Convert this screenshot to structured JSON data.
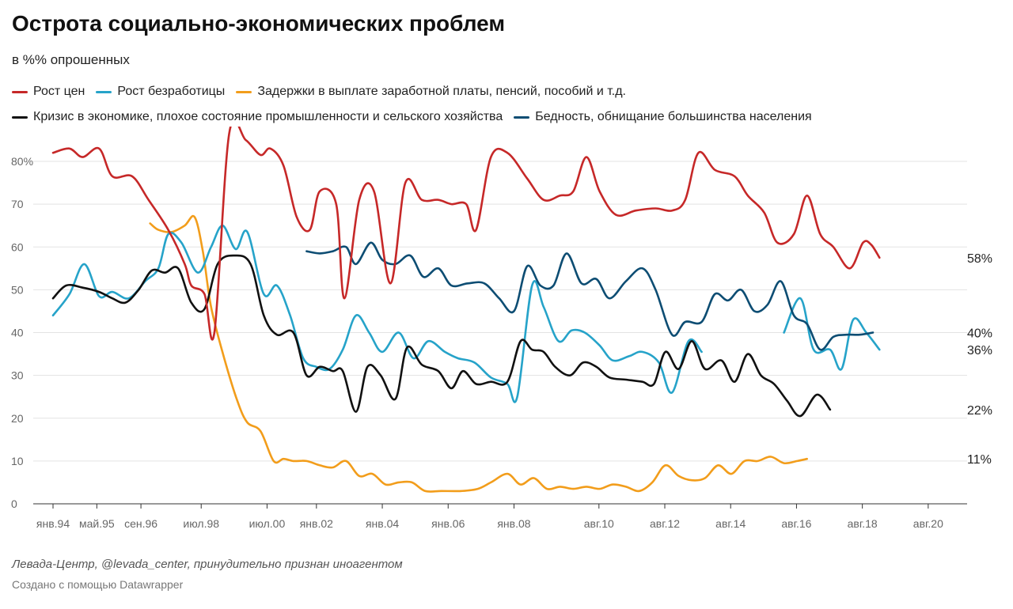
{
  "header": {
    "title": "Острота социально-экономических проблем",
    "subtitle": "в %% опрошенных"
  },
  "footer": {
    "source": "Левада-Центр, @levada_center, принудительно признан иноагентом",
    "credit": "Создано с помощью Datawrapper"
  },
  "chart_data": {
    "type": "line",
    "title": "Острота социально-экономических проблем",
    "subtitle": "в %% опрошенных",
    "xlabel": "",
    "ylabel": "",
    "xlim": [
      1994.0,
      2020.92
    ],
    "ylim": [
      0,
      80
    ],
    "grid": true,
    "legend_position": "top-left",
    "y_ticks": [
      {
        "value": 0,
        "label": "0"
      },
      {
        "value": 10,
        "label": "10"
      },
      {
        "value": 20,
        "label": "20"
      },
      {
        "value": 30,
        "label": "30"
      },
      {
        "value": 40,
        "label": "40"
      },
      {
        "value": 50,
        "label": "50"
      },
      {
        "value": 60,
        "label": "60"
      },
      {
        "value": 70,
        "label": "70"
      },
      {
        "value": 80,
        "label": "80%"
      }
    ],
    "x_ticks": [
      {
        "value": 1994.0,
        "label": "янв.94"
      },
      {
        "value": 1995.33,
        "label": "май.95"
      },
      {
        "value": 1996.67,
        "label": "сен.96"
      },
      {
        "value": 1998.5,
        "label": "июл.98"
      },
      {
        "value": 2000.5,
        "label": "июл.00"
      },
      {
        "value": 2002.0,
        "label": "янв.02"
      },
      {
        "value": 2004.0,
        "label": "янв.04"
      },
      {
        "value": 2006.0,
        "label": "янв.06"
      },
      {
        "value": 2008.0,
        "label": "янв.08"
      },
      {
        "value": 2010.58,
        "label": "авг.10"
      },
      {
        "value": 2012.58,
        "label": "авг.12"
      },
      {
        "value": 2014.58,
        "label": "авг.14"
      },
      {
        "value": 2016.58,
        "label": "авг.16"
      },
      {
        "value": 2018.58,
        "label": "авг.18"
      },
      {
        "value": 2020.58,
        "label": "авг.20"
      }
    ],
    "series": [
      {
        "name": "Рост цен",
        "color": "#c62828",
        "end_label": "58%",
        "points": [
          [
            1994.0,
            82
          ],
          [
            1994.5,
            83
          ],
          [
            1994.9,
            81
          ],
          [
            1995.4,
            83
          ],
          [
            1995.8,
            76.5
          ],
          [
            1996.4,
            76.5
          ],
          [
            1996.9,
            71
          ],
          [
            1997.5,
            64
          ],
          [
            1998.0,
            56
          ],
          [
            1998.2,
            51
          ],
          [
            1998.6,
            49
          ],
          [
            1998.9,
            40
          ],
          [
            1999.35,
            86.5
          ],
          [
            1999.85,
            85
          ],
          [
            2000.3,
            81.5
          ],
          [
            2000.6,
            83
          ],
          [
            2001.0,
            79
          ],
          [
            2001.4,
            67
          ],
          [
            2001.8,
            64
          ],
          [
            2002.1,
            73
          ],
          [
            2002.6,
            70
          ],
          [
            2002.85,
            48
          ],
          [
            2003.3,
            71
          ],
          [
            2003.75,
            73
          ],
          [
            2004.25,
            51.5
          ],
          [
            2004.7,
            75
          ],
          [
            2005.2,
            71
          ],
          [
            2005.7,
            71
          ],
          [
            2006.1,
            70
          ],
          [
            2006.55,
            70
          ],
          [
            2006.85,
            64
          ],
          [
            2007.3,
            81
          ],
          [
            2007.8,
            82
          ],
          [
            2008.4,
            76
          ],
          [
            2008.9,
            71
          ],
          [
            2009.4,
            72
          ],
          [
            2009.8,
            73
          ],
          [
            2010.2,
            81
          ],
          [
            2010.6,
            73
          ],
          [
            2011.1,
            67.5
          ],
          [
            2011.7,
            68.5
          ],
          [
            2012.3,
            69
          ],
          [
            2012.8,
            68.5
          ],
          [
            2013.2,
            71
          ],
          [
            2013.6,
            82
          ],
          [
            2014.1,
            78
          ],
          [
            2014.7,
            76.5
          ],
          [
            2015.1,
            72
          ],
          [
            2015.6,
            68
          ],
          [
            2016.0,
            61
          ],
          [
            2016.5,
            63
          ],
          [
            2016.9,
            72
          ],
          [
            2017.3,
            63
          ],
          [
            2017.7,
            60
          ],
          [
            2018.2,
            55
          ],
          [
            2018.6,
            61
          ],
          [
            2018.85,
            60.5
          ],
          [
            2019.1,
            57.5
          ]
        ]
      },
      {
        "name": "Рост безработицы",
        "color": "#26a3c9",
        "end_label": "36%",
        "points": [
          [
            1994.0,
            44
          ],
          [
            1994.5,
            49
          ],
          [
            1994.95,
            56
          ],
          [
            1995.4,
            48.5
          ],
          [
            1995.8,
            49.5
          ],
          [
            1996.3,
            48
          ],
          [
            1996.8,
            52
          ],
          [
            1997.2,
            55
          ],
          [
            1997.5,
            63
          ],
          [
            1997.9,
            61
          ],
          [
            1998.4,
            54
          ],
          [
            1998.8,
            60
          ],
          [
            1999.15,
            65
          ],
          [
            1999.55,
            59.5
          ],
          [
            1999.9,
            63.5
          ],
          [
            2000.4,
            49
          ],
          [
            2000.8,
            51
          ],
          [
            2001.2,
            44
          ],
          [
            2001.6,
            34
          ],
          [
            2002.0,
            32
          ],
          [
            2002.4,
            31.5
          ],
          [
            2002.8,
            36
          ],
          [
            2003.2,
            44
          ],
          [
            2003.6,
            40
          ],
          [
            2004.0,
            35.5
          ],
          [
            2004.5,
            40
          ],
          [
            2004.95,
            34
          ],
          [
            2005.4,
            38
          ],
          [
            2005.9,
            35.5
          ],
          [
            2006.3,
            34
          ],
          [
            2006.8,
            33
          ],
          [
            2007.3,
            29.5
          ],
          [
            2007.8,
            28
          ],
          [
            2008.1,
            25
          ],
          [
            2008.55,
            51
          ],
          [
            2008.9,
            46
          ],
          [
            2009.35,
            38
          ],
          [
            2009.75,
            40.5
          ],
          [
            2010.15,
            40
          ],
          [
            2010.6,
            37
          ],
          [
            2011.0,
            33.5
          ],
          [
            2011.5,
            34.5
          ],
          [
            2011.9,
            35.5
          ],
          [
            2012.4,
            33
          ],
          [
            2012.8,
            26
          ],
          [
            2013.3,
            38
          ],
          [
            2013.7,
            35.5
          ]
        ],
        "segments": [
          [
            [
              2016.2,
              40
            ],
            [
              2016.7,
              48
            ],
            [
              2017.1,
              36
            ],
            [
              2017.6,
              36
            ],
            [
              2017.95,
              31.5
            ],
            [
              2018.3,
              43
            ],
            [
              2018.7,
              40
            ],
            [
              2019.1,
              36
            ]
          ]
        ]
      },
      {
        "name": "Задержки в выплате заработной платы, пенсий, пособий и т.д.",
        "color": "#f29d1b",
        "end_label": "11%",
        "points": [
          [
            1996.95,
            65.5
          ],
          [
            1997.2,
            64
          ],
          [
            1997.6,
            63.5
          ],
          [
            1998.0,
            65
          ],
          [
            1998.3,
            67
          ],
          [
            1998.55,
            59
          ],
          [
            1998.8,
            46
          ],
          [
            1999.2,
            34
          ],
          [
            1999.6,
            24
          ],
          [
            1999.9,
            19
          ],
          [
            2000.3,
            17
          ],
          [
            2000.7,
            10
          ],
          [
            2001.0,
            10.5
          ],
          [
            2001.3,
            10
          ],
          [
            2001.7,
            10
          ],
          [
            2002.1,
            9
          ],
          [
            2002.5,
            8.5
          ],
          [
            2002.9,
            10
          ],
          [
            2003.3,
            6.5
          ],
          [
            2003.7,
            7
          ],
          [
            2004.1,
            4.5
          ],
          [
            2004.5,
            5
          ],
          [
            2004.9,
            5
          ],
          [
            2005.3,
            3
          ],
          [
            2005.8,
            3
          ],
          [
            2006.4,
            3
          ],
          [
            2006.9,
            3.5
          ],
          [
            2007.3,
            5
          ],
          [
            2007.8,
            7
          ],
          [
            2008.2,
            4.5
          ],
          [
            2008.6,
            6
          ],
          [
            2009.0,
            3.5
          ],
          [
            2009.4,
            4
          ],
          [
            2009.8,
            3.5
          ],
          [
            2010.2,
            4
          ],
          [
            2010.6,
            3.5
          ],
          [
            2011.0,
            4.5
          ],
          [
            2011.4,
            4
          ],
          [
            2011.8,
            3
          ],
          [
            2012.2,
            5
          ],
          [
            2012.6,
            9
          ],
          [
            2013.0,
            6.5
          ],
          [
            2013.4,
            5.5
          ],
          [
            2013.8,
            6
          ],
          [
            2014.2,
            9
          ],
          [
            2014.6,
            7
          ],
          [
            2015.0,
            10
          ],
          [
            2015.4,
            10
          ],
          [
            2015.8,
            11
          ],
          [
            2016.2,
            9.5
          ],
          [
            2016.6,
            10
          ],
          [
            2016.9,
            10.5
          ]
        ]
      },
      {
        "name": "Кризис в экономике, плохое состояние промышленности и сельского хозяйства",
        "color": "#111111",
        "end_label": "22%",
        "points": [
          [
            1994.0,
            48
          ],
          [
            1994.4,
            51
          ],
          [
            1994.9,
            50.5
          ],
          [
            1995.4,
            49.5
          ],
          [
            1995.8,
            48
          ],
          [
            1996.2,
            47
          ],
          [
            1996.6,
            50
          ],
          [
            1997.0,
            54.5
          ],
          [
            1997.4,
            54
          ],
          [
            1997.8,
            55
          ],
          [
            1998.2,
            47
          ],
          [
            1998.6,
            45.5
          ],
          [
            1999.0,
            56
          ],
          [
            1999.5,
            58
          ],
          [
            2000.0,
            56
          ],
          [
            2000.4,
            44
          ],
          [
            2000.8,
            39.5
          ],
          [
            2001.3,
            40
          ],
          [
            2001.7,
            30
          ],
          [
            2002.1,
            32
          ],
          [
            2002.5,
            31
          ],
          [
            2002.8,
            31
          ],
          [
            2003.2,
            21.5
          ],
          [
            2003.55,
            32
          ],
          [
            2003.95,
            30
          ],
          [
            2004.4,
            24.5
          ],
          [
            2004.75,
            36.5
          ],
          [
            2005.2,
            32.5
          ],
          [
            2005.7,
            31
          ],
          [
            2006.1,
            27
          ],
          [
            2006.45,
            31
          ],
          [
            2006.85,
            28
          ],
          [
            2007.3,
            28.5
          ],
          [
            2007.8,
            28.5
          ],
          [
            2008.2,
            38
          ],
          [
            2008.55,
            36
          ],
          [
            2008.9,
            35.5
          ],
          [
            2009.25,
            32
          ],
          [
            2009.7,
            30
          ],
          [
            2010.1,
            33
          ],
          [
            2010.5,
            32
          ],
          [
            2010.9,
            29.5
          ],
          [
            2011.4,
            29
          ],
          [
            2011.9,
            28.5
          ],
          [
            2012.25,
            28
          ],
          [
            2012.6,
            35.5
          ],
          [
            2013.0,
            31.5
          ],
          [
            2013.4,
            38
          ],
          [
            2013.8,
            31.5
          ],
          [
            2014.3,
            33.5
          ],
          [
            2014.7,
            28.5
          ],
          [
            2015.1,
            35
          ],
          [
            2015.5,
            30
          ],
          [
            2015.9,
            28
          ],
          [
            2016.3,
            24
          ],
          [
            2016.7,
            20.5
          ],
          [
            2017.2,
            25.5
          ],
          [
            2017.6,
            22
          ]
        ]
      },
      {
        "name": "Бедность, обнищание большинства населения",
        "color": "#0d4d73",
        "end_label": "40%",
        "points": [
          [
            2001.7,
            59
          ],
          [
            2002.1,
            58.5
          ],
          [
            2002.5,
            59
          ],
          [
            2002.9,
            60
          ],
          [
            2003.2,
            56
          ],
          [
            2003.65,
            61
          ],
          [
            2004.0,
            57
          ],
          [
            2004.4,
            56
          ],
          [
            2004.85,
            58
          ],
          [
            2005.25,
            53
          ],
          [
            2005.7,
            55
          ],
          [
            2006.1,
            51
          ],
          [
            2006.6,
            51.5
          ],
          [
            2007.1,
            51.5
          ],
          [
            2007.55,
            48
          ],
          [
            2008.0,
            45
          ],
          [
            2008.4,
            55.5
          ],
          [
            2008.8,
            51
          ],
          [
            2009.2,
            51
          ],
          [
            2009.6,
            58.5
          ],
          [
            2010.05,
            51.5
          ],
          [
            2010.5,
            52.5
          ],
          [
            2010.9,
            48
          ],
          [
            2011.4,
            52
          ],
          [
            2011.9,
            55
          ],
          [
            2012.3,
            50
          ],
          [
            2012.8,
            39.5
          ],
          [
            2013.2,
            42.5
          ],
          [
            2013.7,
            42.5
          ],
          [
            2014.1,
            49
          ],
          [
            2014.5,
            47.5
          ],
          [
            2014.9,
            50
          ],
          [
            2015.3,
            45
          ],
          [
            2015.7,
            46.5
          ],
          [
            2016.1,
            52
          ],
          [
            2016.5,
            44
          ],
          [
            2016.9,
            42
          ],
          [
            2017.3,
            36
          ],
          [
            2017.7,
            39
          ],
          [
            2018.1,
            39.5
          ],
          [
            2018.5,
            39.5
          ],
          [
            2018.9,
            40
          ]
        ]
      }
    ]
  }
}
